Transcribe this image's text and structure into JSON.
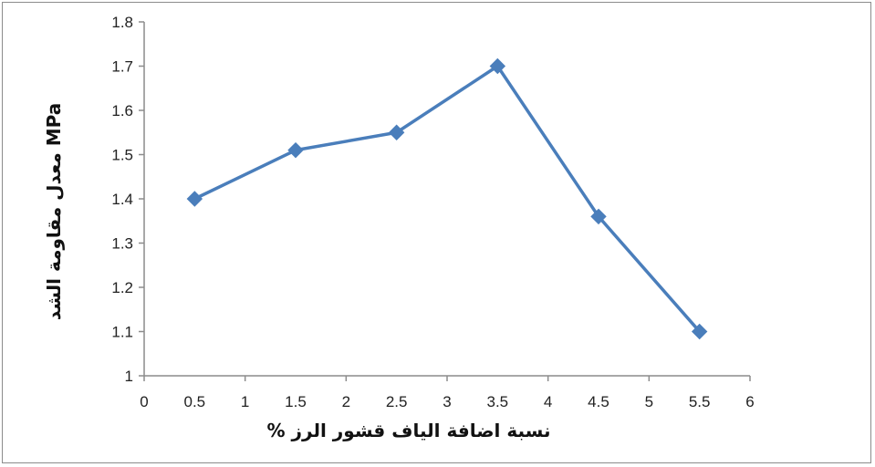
{
  "chart_data": {
    "type": "line",
    "title": "",
    "xlabel": "نسبة اضافة الياف قشور الرز     %",
    "ylabel": "معدل مقاومة الشد   MPa",
    "x": [
      0.5,
      1.5,
      2.5,
      3.5,
      4.5,
      5.5
    ],
    "series": [
      {
        "values": [
          1.4,
          1.51,
          1.55,
          1.7,
          1.36,
          1.1
        ],
        "color": "#4a7ebb"
      }
    ],
    "xlim": [
      0,
      6
    ],
    "ylim": [
      1,
      1.8
    ],
    "x_ticks": [
      "0",
      "0.5",
      "1",
      "1.5",
      "2",
      "2.5",
      "3",
      "3.5",
      "4",
      "4.5",
      "5",
      "5.5",
      "6"
    ],
    "y_ticks": [
      "1",
      "1.1",
      "1.2",
      "1.3",
      "1.4",
      "1.5",
      "1.6",
      "1.7",
      "1.8"
    ],
    "grid": false,
    "legend": "none",
    "marker": "diamond"
  }
}
